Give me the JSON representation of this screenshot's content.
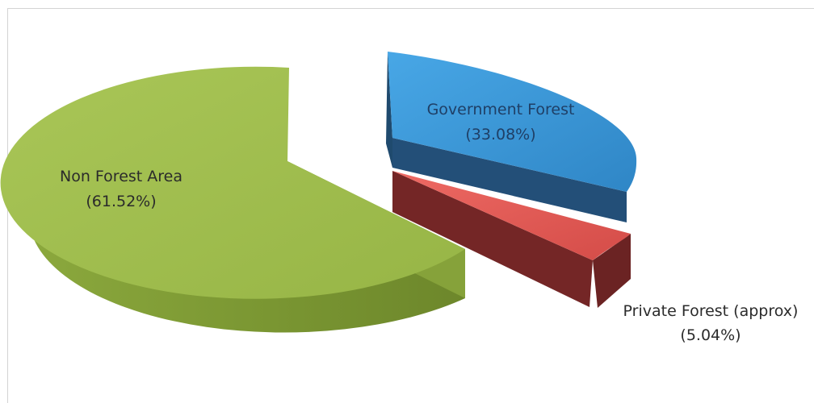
{
  "chart_data": {
    "type": "pie",
    "exploded": true,
    "three_d": true,
    "slices": [
      {
        "label": "Government Forest",
        "percent_label": "(33.08%)",
        "value": 33.08,
        "color": "#3a96d6",
        "side_color": "#1f4a6e"
      },
      {
        "label": "Private Forest (approx)",
        "percent_label": "(5.04%)",
        "value": 5.04,
        "color": "#e25a55",
        "side_color": "#7a2a2a"
      },
      {
        "label": "Non Forest Area",
        "percent_label": "(61.52%)",
        "value": 61.52,
        "color": "#a6c251",
        "side_color": "#7f9a35"
      }
    ]
  }
}
